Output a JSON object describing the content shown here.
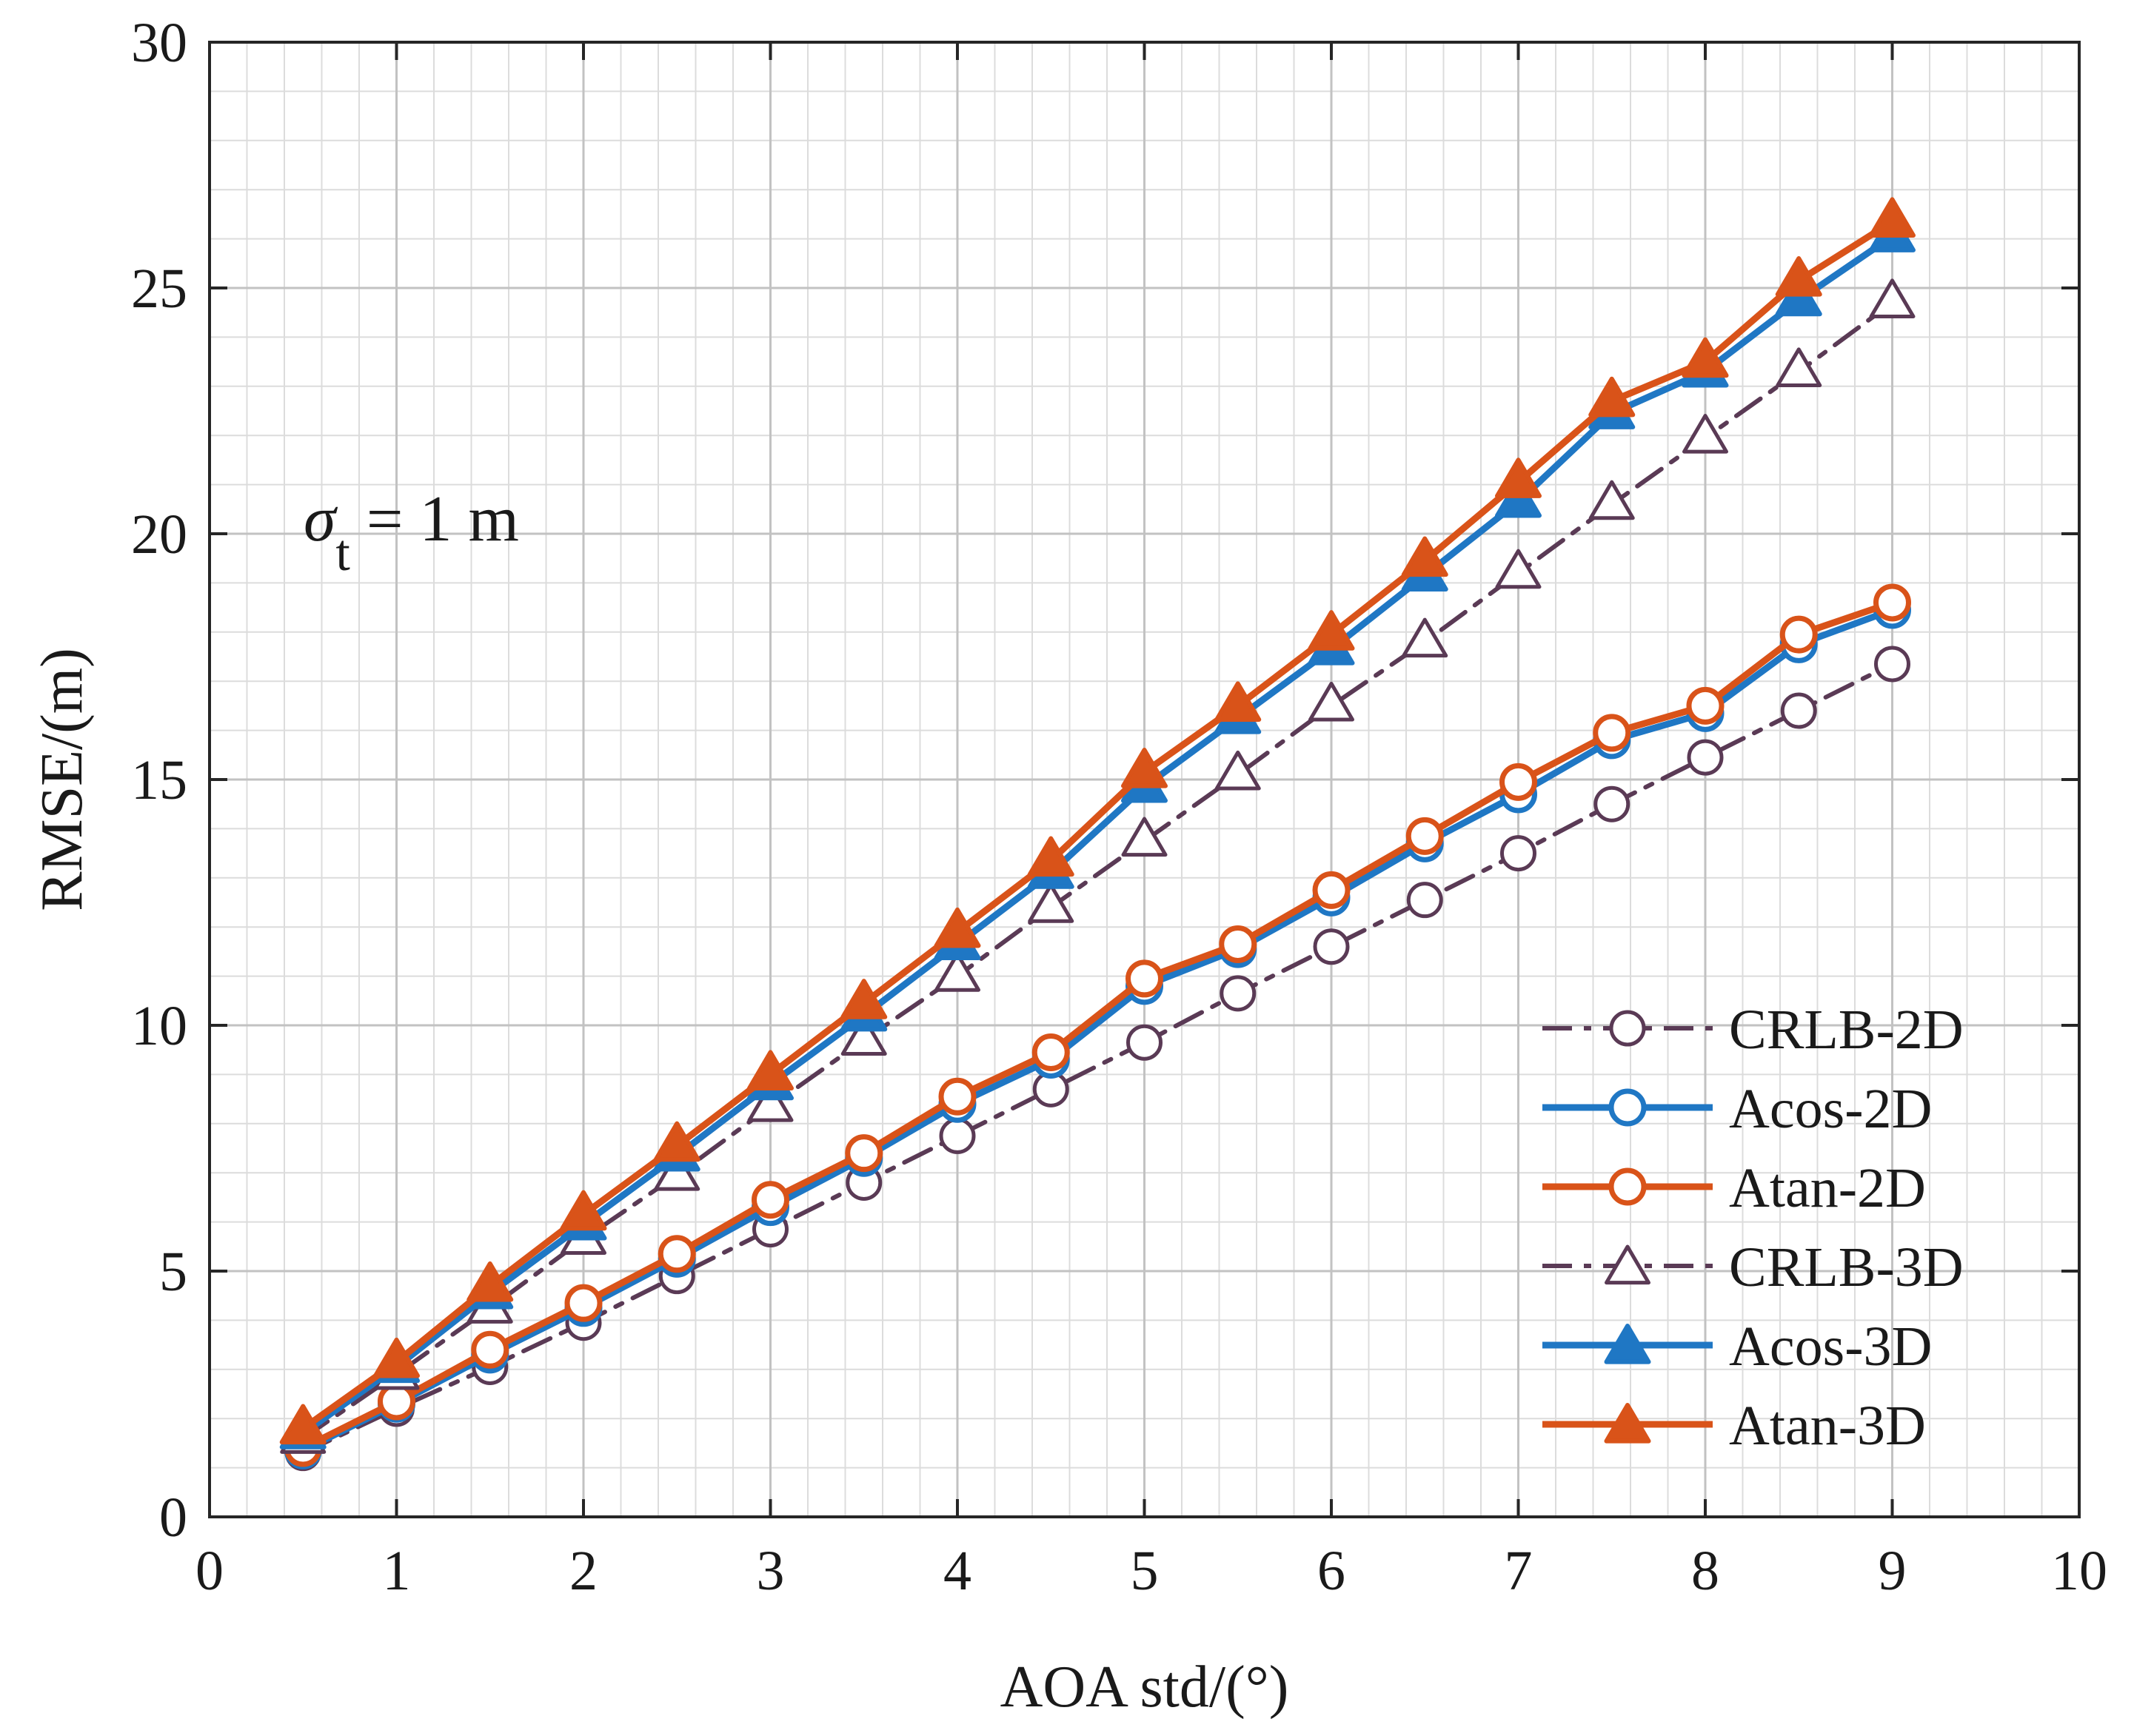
{
  "chart_data": {
    "type": "line",
    "title": "",
    "xlabel": "AOA std/(°)",
    "ylabel": "RMSE/(m)",
    "xlim": [
      0,
      10
    ],
    "ylim": [
      0,
      30
    ],
    "xticks": [
      0,
      1,
      2,
      3,
      4,
      5,
      6,
      7,
      8,
      9,
      10
    ],
    "yticks": [
      0,
      5,
      10,
      15,
      20,
      25,
      30
    ],
    "xtick_labels": [
      "0",
      "1",
      "2",
      "3",
      "4",
      "5",
      "6",
      "7",
      "8",
      "9",
      "10"
    ],
    "ytick_labels": [
      "0",
      "5",
      "10",
      "15",
      "20",
      "25",
      "30"
    ],
    "grid": true,
    "minor_grid": true,
    "legend_position": "bottom-right",
    "annotation": {
      "symbol": "σ",
      "subscript": "t",
      "text": " = 1 m"
    },
    "x": [
      0.5,
      1,
      1.5,
      2,
      2.5,
      3,
      3.5,
      4,
      4.5,
      5,
      5.5,
      6,
      6.5,
      7,
      7.5,
      8,
      8.5,
      9
    ],
    "series": [
      {
        "name": "CRLB-2D",
        "color": "#5a3a55",
        "line_style": "dashdot",
        "marker": "circle",
        "marker_fill": "none",
        "values": [
          1.3,
          2.2,
          3.05,
          3.95,
          4.9,
          5.85,
          6.8,
          7.75,
          8.7,
          9.65,
          10.65,
          11.6,
          12.55,
          13.5,
          14.5,
          15.45,
          16.4,
          17.35
        ]
      },
      {
        "name": "Acos-2D",
        "color": "#1f77c4",
        "line_style": "solid",
        "marker": "circle",
        "marker_fill": "none",
        "values": [
          1.35,
          2.3,
          3.3,
          4.25,
          5.25,
          6.3,
          7.3,
          8.4,
          9.3,
          10.8,
          11.55,
          12.6,
          13.7,
          14.7,
          15.8,
          16.35,
          17.75,
          18.45
        ]
      },
      {
        "name": "Atan-2D",
        "color": "#d95319",
        "line_style": "solid",
        "marker": "circle",
        "marker_fill": "none",
        "values": [
          1.4,
          2.35,
          3.4,
          4.35,
          5.35,
          6.45,
          7.4,
          8.55,
          9.45,
          10.95,
          11.65,
          12.75,
          13.85,
          14.95,
          15.95,
          16.5,
          17.95,
          18.6
        ]
      },
      {
        "name": "CRLB-3D",
        "color": "#5a3a55",
        "line_style": "dashdot",
        "marker": "triangle",
        "marker_fill": "none",
        "values": [
          1.6,
          2.9,
          4.25,
          5.65,
          6.95,
          8.35,
          9.7,
          11.0,
          12.4,
          13.75,
          15.1,
          16.5,
          17.8,
          19.2,
          20.6,
          21.95,
          23.3,
          24.7
        ]
      },
      {
        "name": "Acos-3D",
        "color": "#1f77c4",
        "line_style": "solid",
        "marker": "triangle",
        "marker_fill": "#1f77c4",
        "values": [
          1.7,
          3.05,
          4.55,
          5.95,
          7.35,
          8.8,
          10.2,
          11.65,
          13.1,
          14.85,
          16.25,
          17.65,
          19.15,
          20.65,
          22.45,
          23.3,
          24.75,
          26.05
        ]
      },
      {
        "name": "Atan-3D",
        "color": "#d95319",
        "line_style": "solid",
        "marker": "triangle",
        "marker_fill": "#d95319",
        "values": [
          1.8,
          3.15,
          4.7,
          6.15,
          7.55,
          9.0,
          10.45,
          11.9,
          13.35,
          15.15,
          16.5,
          17.95,
          19.45,
          21.05,
          22.7,
          23.5,
          25.15,
          26.35
        ]
      }
    ]
  }
}
